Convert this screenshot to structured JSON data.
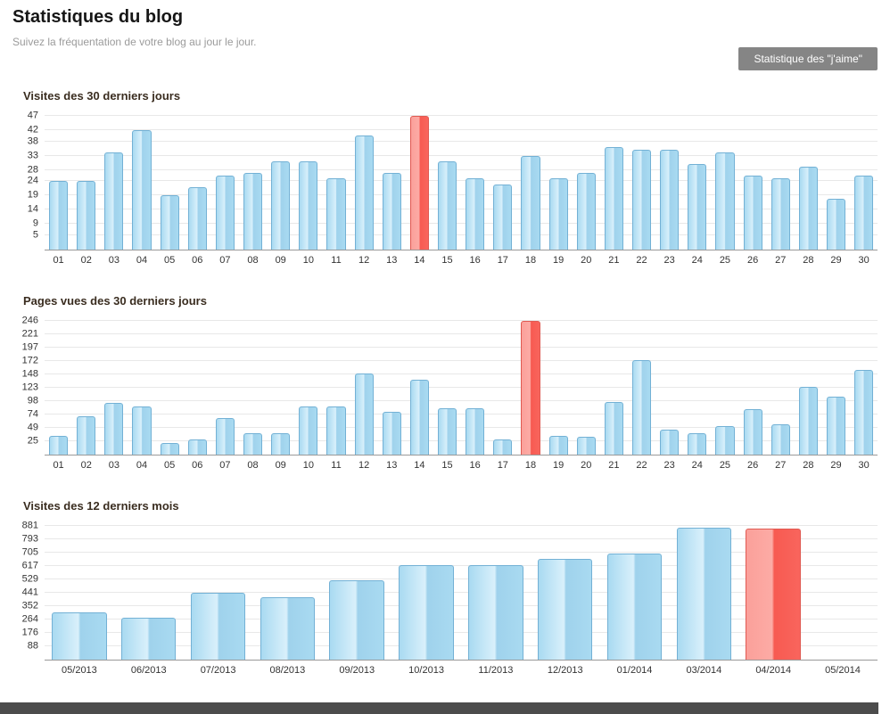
{
  "header": {
    "title": "Statistiques du blog",
    "subtitle": "Suivez la fréquentation de votre blog au jour le jour.",
    "likes_button_label": "Statistique des \"j'aime\""
  },
  "colors": {
    "bar_blue": "#a9daf1",
    "bar_blue_border": "#73b1d5",
    "bar_red": "#f9655d",
    "button_gray": "#858585",
    "footer_gray": "#4c4c4c"
  },
  "chart_data": [
    {
      "type": "bar",
      "title": "Visites des 30 derniers jours",
      "categories": [
        "01",
        "02",
        "03",
        "04",
        "05",
        "06",
        "07",
        "08",
        "09",
        "10",
        "11",
        "12",
        "13",
        "14",
        "15",
        "16",
        "17",
        "18",
        "19",
        "20",
        "21",
        "22",
        "23",
        "24",
        "25",
        "26",
        "27",
        "28",
        "29",
        "30"
      ],
      "values": [
        24,
        24,
        34,
        42,
        19,
        22,
        26,
        27,
        31,
        31,
        25,
        40,
        27,
        47,
        31,
        25,
        23,
        33,
        25,
        27,
        36,
        35,
        35,
        30,
        34,
        26,
        25,
        29,
        18,
        26
      ],
      "highlight_index": 13,
      "highlight_color": "#f9655d",
      "yticks": [
        5,
        9,
        14,
        19,
        24,
        28,
        33,
        38,
        42,
        47
      ],
      "ylim": [
        0,
        47
      ],
      "xlabel": "",
      "ylabel": "",
      "grid": true,
      "legend": "none"
    },
    {
      "type": "bar",
      "title": "Pages vues des 30 derniers jours",
      "categories": [
        "01",
        "02",
        "03",
        "04",
        "05",
        "06",
        "07",
        "08",
        "09",
        "10",
        "11",
        "12",
        "13",
        "14",
        "15",
        "16",
        "17",
        "18",
        "19",
        "20",
        "21",
        "22",
        "23",
        "24",
        "25",
        "26",
        "27",
        "28",
        "29",
        "30"
      ],
      "values": [
        35,
        71,
        95,
        88,
        22,
        28,
        68,
        40,
        40,
        88,
        88,
        149,
        78,
        138,
        86,
        86,
        28,
        246,
        35,
        32,
        96,
        174,
        46,
        40,
        53,
        83,
        55,
        124,
        106,
        156
      ],
      "highlight_index": 17,
      "highlight_color": "#f9655d",
      "yticks": [
        25,
        49,
        74,
        98,
        123,
        148,
        172,
        197,
        221,
        246
      ],
      "ylim": [
        0,
        246
      ],
      "xlabel": "",
      "ylabel": "",
      "grid": true,
      "legend": "none"
    },
    {
      "type": "bar",
      "title": "Visites des 12 derniers mois",
      "categories": [
        "05/2013",
        "06/2013",
        "07/2013",
        "08/2013",
        "09/2013",
        "10/2013",
        "11/2013",
        "12/2013",
        "01/2014",
        "03/2014",
        "04/2014",
        "05/2014"
      ],
      "values": [
        310,
        275,
        440,
        410,
        520,
        620,
        625,
        665,
        700,
        870,
        865,
        0
      ],
      "highlight_index": 10,
      "highlight_color": "#f9655d",
      "yticks": [
        88,
        176,
        264,
        352,
        441,
        529,
        617,
        705,
        793,
        881
      ],
      "ylim": [
        0,
        881
      ],
      "xlabel": "",
      "ylabel": "",
      "grid": true,
      "legend": "none"
    }
  ]
}
